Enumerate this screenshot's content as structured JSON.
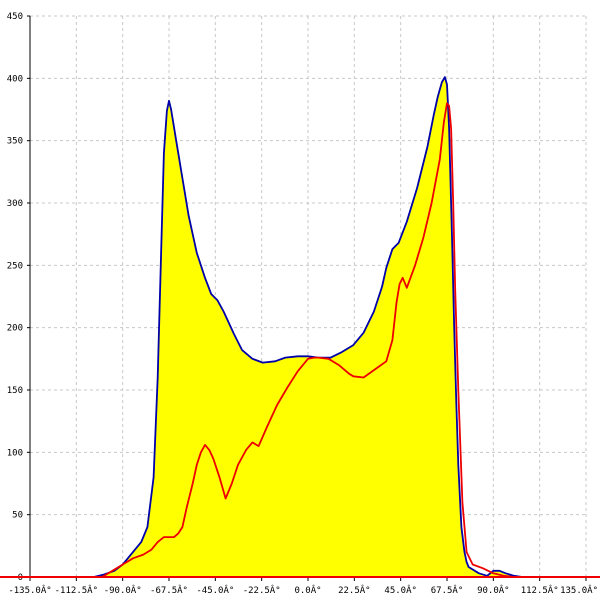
{
  "chart_data": {
    "type": "area",
    "title": "",
    "xlabel": "",
    "ylabel": "",
    "xlim": [
      -135,
      135
    ],
    "ylim": [
      0,
      450
    ],
    "grid": true,
    "legend": "none",
    "x_ticks": [
      {
        "value": -135,
        "label": "-135.0Â°"
      },
      {
        "value": -112.5,
        "label": "-112.5Â°"
      },
      {
        "value": -90,
        "label": "-90.0Â°"
      },
      {
        "value": -67.5,
        "label": "-67.5Â°"
      },
      {
        "value": -45,
        "label": "-45.0Â°"
      },
      {
        "value": -22.5,
        "label": "-22.5Â°"
      },
      {
        "value": 0,
        "label": "0.0Â°"
      },
      {
        "value": 22.5,
        "label": "22.5Â°"
      },
      {
        "value": 45,
        "label": "45.0Â°"
      },
      {
        "value": 67.5,
        "label": "67.5Â°"
      },
      {
        "value": 90,
        "label": "90.0Â°"
      },
      {
        "value": 112.5,
        "label": "112.5Â°"
      },
      {
        "value": 135,
        "label": "135.0Â°"
      }
    ],
    "y_ticks": [
      {
        "value": 0,
        "label": "0"
      },
      {
        "value": 50,
        "label": "50"
      },
      {
        "value": 100,
        "label": "100"
      },
      {
        "value": 150,
        "label": "150"
      },
      {
        "value": 200,
        "label": "200"
      },
      {
        "value": 250,
        "label": "250"
      },
      {
        "value": 300,
        "label": "300"
      },
      {
        "value": 350,
        "label": "350"
      },
      {
        "value": 400,
        "label": "400"
      },
      {
        "value": 450,
        "label": "450"
      }
    ],
    "series": [
      {
        "color": "#0000aa",
        "fill": "#ffff00",
        "x": [
          -104,
          -99,
          -94,
          -90,
          -86,
          -81,
          -78,
          -75,
          -73,
          -71,
          -70,
          -68.5,
          -67.5,
          -66.5,
          -64,
          -61,
          -58,
          -54,
          -50,
          -47,
          -44,
          -41,
          -36,
          -32,
          -27,
          -22,
          -16,
          -11,
          -5,
          0,
          5,
          11,
          16,
          22,
          27,
          32,
          36,
          38,
          41,
          44,
          48,
          53,
          58,
          61,
          63,
          65,
          66.5,
          67.5,
          68.5,
          70,
          71,
          72,
          73,
          74.5,
          76,
          77,
          78,
          80,
          83,
          87,
          90,
          93,
          96,
          100,
          104
        ],
        "y": [
          0,
          2,
          5,
          10,
          18,
          28,
          40,
          80,
          160,
          280,
          340,
          374,
          382,
          375,
          350,
          320,
          290,
          260,
          240,
          227,
          222,
          213,
          195,
          182,
          175,
          172,
          173,
          176,
          177,
          177,
          176,
          176,
          180,
          186,
          196,
          213,
          233,
          248,
          263,
          268,
          285,
          312,
          345,
          370,
          385,
          397,
          401,
          395,
          360,
          270,
          200,
          140,
          90,
          40,
          20,
          12,
          8,
          6,
          3,
          1,
          5,
          5,
          3,
          1,
          0
        ]
      },
      {
        "color": "#ee0000",
        "fill": "none",
        "x": [
          -100,
          -95,
          -90,
          -85,
          -80,
          -76,
          -73,
          -70,
          -67,
          -65,
          -63,
          -61,
          -59,
          -56,
          -54,
          -52,
          -50,
          -48,
          -46,
          -43,
          -40,
          -37,
          -34,
          -30,
          -27,
          -24,
          -20,
          -15,
          -10,
          -5,
          0,
          3,
          5,
          10,
          15,
          20,
          22,
          27,
          32,
          38,
          41,
          43,
          44.5,
          46,
          48,
          52,
          56,
          60,
          64,
          66,
          67.5,
          68.5,
          69.5,
          70.5,
          71.5,
          73,
          75,
          77,
          80,
          85,
          90,
          95,
          100,
          104
        ],
        "y": [
          0,
          5,
          10,
          15,
          18,
          22,
          28,
          32,
          32,
          32,
          35,
          40,
          55,
          75,
          90,
          100,
          106,
          102,
          95,
          80,
          63,
          75,
          90,
          102,
          108,
          105,
          120,
          138,
          152,
          165,
          175,
          176,
          176,
          175,
          170,
          163,
          161,
          160,
          166,
          173,
          190,
          220,
          235,
          240,
          232,
          250,
          272,
          300,
          335,
          365,
          380,
          378,
          360,
          300,
          230,
          150,
          60,
          20,
          10,
          7,
          3,
          1,
          0,
          0
        ]
      }
    ]
  }
}
